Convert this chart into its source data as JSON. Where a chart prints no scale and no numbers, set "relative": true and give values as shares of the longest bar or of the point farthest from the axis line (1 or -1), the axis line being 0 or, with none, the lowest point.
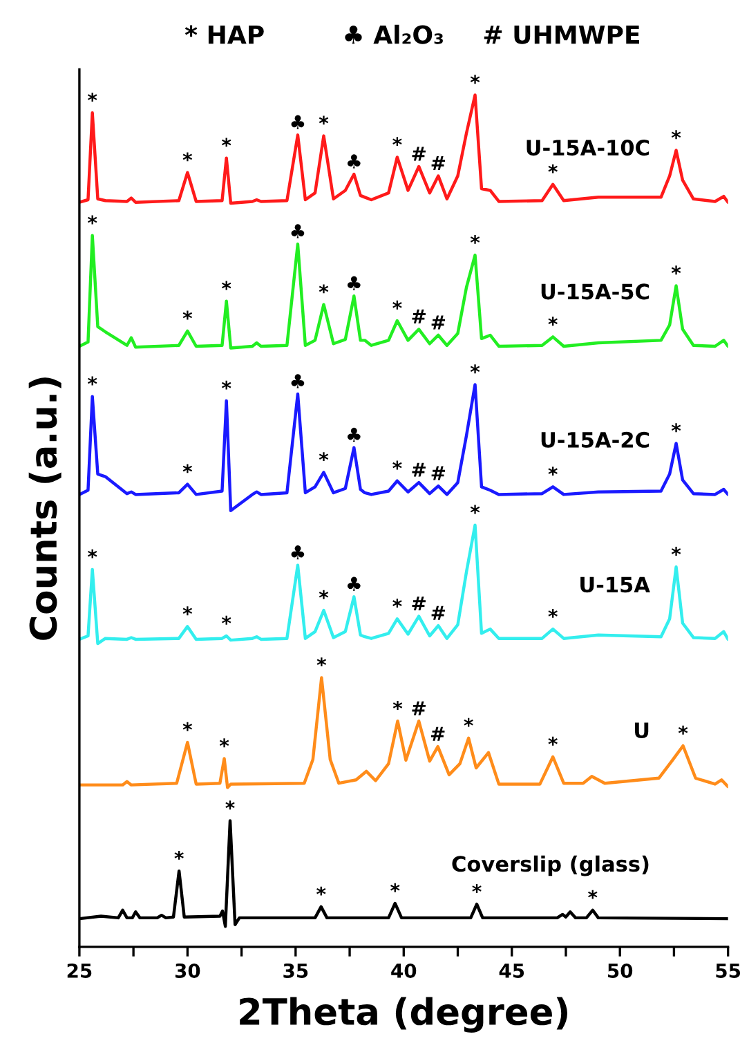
{
  "chart_data": {
    "type": "line",
    "relative": true,
    "xlabel": "2Theta (degree)",
    "ylabel": "Counts (a.u.)",
    "xlim": [
      25,
      55
    ],
    "xticks": [
      25,
      {
        "value": 27.5,
        "label": null
      },
      30,
      {
        "value": 32.5,
        "label": null
      },
      35,
      {
        "value": 37.5,
        "label": null
      },
      40,
      {
        "value": 42.5,
        "label": null
      },
      45,
      {
        "value": 47.5,
        "label": null
      },
      50,
      {
        "value": 52.5,
        "label": null
      },
      55
    ],
    "grid": false,
    "legend": false,
    "tick_labels": "x",
    "series": [
      {
        "name": "U-15A-10C",
        "color": "#ff1a1a",
        "x": [
          25.0,
          25.4,
          25.6,
          25.85,
          26.2,
          27.2,
          27.4,
          27.6,
          29.6,
          30.0,
          30.4,
          31.6,
          31.8,
          32.0,
          33.0,
          33.2,
          33.4,
          34.6,
          35.1,
          35.45,
          35.9,
          36.3,
          36.75,
          37.3,
          37.7,
          38.0,
          38.2,
          38.5,
          39.3,
          39.7,
          40.2,
          40.7,
          41.2,
          41.6,
          42.0,
          42.5,
          42.9,
          43.3,
          43.6,
          44.0,
          44.4,
          46.4,
          46.9,
          47.4,
          49.0,
          51.9,
          52.3,
          52.6,
          52.9,
          53.4,
          54.4,
          54.8,
          55.0
        ],
        "values": [
          0.874,
          0.877,
          0.979,
          0.878,
          0.876,
          0.875,
          0.879,
          0.874,
          0.876,
          0.909,
          0.875,
          0.876,
          0.926,
          0.873,
          0.875,
          0.877,
          0.875,
          0.876,
          0.953,
          0.877,
          0.885,
          0.952,
          0.878,
          0.888,
          0.907,
          0.882,
          0.88,
          0.877,
          0.885,
          0.927,
          0.888,
          0.916,
          0.885,
          0.905,
          0.878,
          0.905,
          0.955,
          1.0,
          0.89,
          0.888,
          0.875,
          0.876,
          0.895,
          0.876,
          0.88,
          0.88,
          0.905,
          0.935,
          0.9,
          0.878,
          0.875,
          0.881,
          0.874
        ]
      },
      {
        "name": "U-15A-5C",
        "color": "#22ee22",
        "x": [
          25.0,
          25.4,
          25.6,
          25.85,
          26.2,
          27.2,
          27.4,
          27.6,
          29.6,
          30.0,
          30.4,
          31.6,
          31.8,
          32.0,
          33.0,
          33.2,
          33.4,
          34.6,
          35.1,
          35.45,
          35.9,
          36.3,
          36.75,
          37.3,
          37.7,
          38.0,
          38.2,
          38.5,
          39.3,
          39.7,
          40.2,
          40.7,
          41.2,
          41.6,
          42.0,
          42.5,
          42.9,
          43.3,
          43.6,
          44.0,
          44.4,
          46.4,
          46.9,
          47.4,
          49.0,
          51.9,
          52.3,
          52.6,
          52.9,
          53.4,
          54.4,
          54.8,
          55.0
        ],
        "values": [
          0.705,
          0.71,
          0.835,
          0.728,
          0.722,
          0.706,
          0.715,
          0.704,
          0.706,
          0.723,
          0.705,
          0.706,
          0.758,
          0.703,
          0.705,
          0.709,
          0.705,
          0.706,
          0.825,
          0.706,
          0.712,
          0.754,
          0.708,
          0.713,
          0.764,
          0.712,
          0.712,
          0.706,
          0.712,
          0.735,
          0.712,
          0.725,
          0.708,
          0.718,
          0.706,
          0.72,
          0.774,
          0.812,
          0.714,
          0.718,
          0.705,
          0.706,
          0.716,
          0.705,
          0.709,
          0.712,
          0.73,
          0.776,
          0.725,
          0.706,
          0.705,
          0.712,
          0.705
        ]
      },
      {
        "name": "U-15A-2C",
        "color": "#1a1aff",
        "x": [
          25.0,
          25.4,
          25.6,
          25.85,
          26.2,
          27.2,
          27.4,
          27.6,
          29.6,
          30.0,
          30.4,
          31.6,
          31.8,
          32.0,
          33.0,
          33.2,
          33.4,
          34.6,
          35.1,
          35.45,
          35.9,
          36.3,
          36.75,
          37.3,
          37.7,
          38.0,
          38.2,
          38.5,
          39.3,
          39.7,
          40.2,
          40.7,
          41.2,
          41.6,
          42.0,
          42.5,
          42.9,
          43.3,
          43.6,
          44.0,
          44.4,
          46.4,
          46.9,
          47.4,
          49.0,
          51.9,
          52.3,
          52.6,
          52.9,
          53.4,
          54.4,
          54.8,
          55.0
        ],
        "values": [
          0.531,
          0.536,
          0.646,
          0.555,
          0.552,
          0.532,
          0.534,
          0.531,
          0.533,
          0.543,
          0.531,
          0.535,
          0.641,
          0.512,
          0.531,
          0.534,
          0.531,
          0.533,
          0.649,
          0.533,
          0.54,
          0.557,
          0.533,
          0.538,
          0.586,
          0.537,
          0.533,
          0.531,
          0.535,
          0.547,
          0.534,
          0.545,
          0.532,
          0.541,
          0.531,
          0.545,
          0.6,
          0.66,
          0.54,
          0.536,
          0.531,
          0.532,
          0.54,
          0.531,
          0.534,
          0.535,
          0.555,
          0.591,
          0.548,
          0.532,
          0.531,
          0.537,
          0.531
        ]
      },
      {
        "name": "U-15A",
        "color": "#33eeee",
        "x": [
          25.0,
          25.4,
          25.6,
          25.85,
          26.2,
          27.2,
          27.4,
          27.6,
          29.6,
          30.0,
          30.4,
          31.6,
          31.8,
          32.0,
          33.0,
          33.2,
          33.4,
          34.6,
          35.1,
          35.45,
          35.9,
          36.3,
          36.75,
          37.3,
          37.7,
          38.0,
          38.2,
          38.5,
          39.3,
          39.7,
          40.2,
          40.7,
          41.2,
          41.6,
          42.0,
          42.5,
          42.9,
          43.3,
          43.6,
          44.0,
          44.4,
          46.4,
          46.9,
          47.4,
          49.0,
          51.9,
          52.3,
          52.6,
          52.9,
          53.4,
          54.4,
          54.8,
          55.0
        ],
        "values": [
          0.361,
          0.365,
          0.443,
          0.356,
          0.362,
          0.361,
          0.363,
          0.361,
          0.362,
          0.376,
          0.361,
          0.362,
          0.365,
          0.36,
          0.362,
          0.364,
          0.361,
          0.362,
          0.448,
          0.362,
          0.37,
          0.395,
          0.363,
          0.37,
          0.411,
          0.366,
          0.364,
          0.362,
          0.368,
          0.385,
          0.367,
          0.388,
          0.365,
          0.377,
          0.362,
          0.378,
          0.44,
          0.495,
          0.368,
          0.373,
          0.362,
          0.362,
          0.373,
          0.362,
          0.366,
          0.364,
          0.385,
          0.446,
          0.38,
          0.363,
          0.362,
          0.37,
          0.361
        ]
      },
      {
        "name": "U",
        "color": "#ff8c1a",
        "x": [
          25.0,
          27.0,
          27.2,
          27.4,
          29.5,
          30.0,
          30.4,
          31.5,
          31.7,
          31.85,
          32.0,
          35.4,
          35.8,
          36.2,
          36.6,
          37.0,
          37.8,
          38.27,
          38.7,
          39.3,
          39.72,
          40.1,
          40.7,
          41.2,
          41.58,
          42.1,
          42.6,
          43.0,
          43.35,
          43.92,
          44.4,
          46.3,
          46.9,
          47.4,
          48.3,
          48.7,
          49.3,
          51.8,
          52.4,
          52.92,
          53.5,
          54.4,
          54.7,
          55.0
        ],
        "values": [
          0.19,
          0.19,
          0.194,
          0.19,
          0.192,
          0.24,
          0.191,
          0.192,
          0.221,
          0.187,
          0.191,
          0.192,
          0.22,
          0.316,
          0.22,
          0.192,
          0.196,
          0.206,
          0.195,
          0.215,
          0.265,
          0.219,
          0.265,
          0.218,
          0.235,
          0.202,
          0.215,
          0.245,
          0.21,
          0.228,
          0.191,
          0.191,
          0.223,
          0.192,
          0.192,
          0.2,
          0.192,
          0.198,
          0.218,
          0.236,
          0.198,
          0.191,
          0.196,
          0.188
        ]
      },
      {
        "name": "Coverslip (glass)",
        "color": "#000000",
        "x": [
          25.0,
          26.0,
          26.8,
          27.0,
          27.2,
          27.45,
          27.6,
          27.8,
          28.6,
          28.8,
          29.0,
          29.35,
          29.61,
          29.85,
          31.5,
          31.62,
          31.75,
          31.97,
          32.2,
          32.4,
          35.9,
          36.18,
          36.45,
          39.3,
          39.6,
          39.9,
          43.1,
          43.38,
          43.65,
          47.1,
          47.35,
          47.5,
          47.7,
          47.95,
          48.45,
          48.74,
          49.0,
          55.0
        ],
        "values": [
          0.033,
          0.036,
          0.034,
          0.043,
          0.034,
          0.034,
          0.041,
          0.034,
          0.034,
          0.037,
          0.034,
          0.035,
          0.089,
          0.035,
          0.036,
          0.042,
          0.024,
          0.148,
          0.026,
          0.034,
          0.034,
          0.047,
          0.034,
          0.034,
          0.051,
          0.034,
          0.034,
          0.05,
          0.034,
          0.034,
          0.038,
          0.035,
          0.041,
          0.034,
          0.034,
          0.043,
          0.034,
          0.033
        ]
      }
    ],
    "annotations": [
      "* HAP",
      "♣ Al₂O₃",
      "# UHMWPE",
      {
        "text": "*",
        "x": 25.6,
        "y": 0.979
      },
      {
        "text": "*",
        "x": 30.0,
        "y": 0.909
      },
      {
        "text": "*",
        "x": 31.8,
        "y": 0.926
      },
      {
        "text": "♣",
        "x": 35.1,
        "y": 0.953
      },
      {
        "text": "*",
        "x": 36.3,
        "y": 0.952
      },
      {
        "text": "♣",
        "x": 37.7,
        "y": 0.907
      },
      {
        "text": "*",
        "x": 39.7,
        "y": 0.927
      },
      {
        "text": "#",
        "x": 40.7,
        "y": 0.916
      },
      {
        "text": "#",
        "x": 41.6,
        "y": 0.905
      },
      {
        "text": "*",
        "x": 43.3,
        "y": 1.0
      },
      {
        "text": "*",
        "x": 46.9,
        "y": 0.895
      },
      {
        "text": "*",
        "x": 52.6,
        "y": 0.935
      },
      {
        "text": "*",
        "x": 25.6,
        "y": 0.835
      },
      {
        "text": "*",
        "x": 30.0,
        "y": 0.723
      },
      {
        "text": "*",
        "x": 31.8,
        "y": 0.758
      },
      {
        "text": "♣",
        "x": 35.1,
        "y": 0.825
      },
      {
        "text": "*",
        "x": 36.3,
        "y": 0.754
      },
      {
        "text": "♣",
        "x": 37.7,
        "y": 0.764
      },
      {
        "text": "*",
        "x": 39.7,
        "y": 0.735
      },
      {
        "text": "#",
        "x": 40.7,
        "y": 0.725
      },
      {
        "text": "#",
        "x": 41.6,
        "y": 0.718
      },
      {
        "text": "*",
        "x": 43.3,
        "y": 0.812
      },
      {
        "text": "*",
        "x": 46.9,
        "y": 0.716
      },
      {
        "text": "*",
        "x": 52.6,
        "y": 0.776
      },
      {
        "text": "*",
        "x": 25.6,
        "y": 0.646
      },
      {
        "text": "*",
        "x": 30.0,
        "y": 0.543
      },
      {
        "text": "*",
        "x": 31.8,
        "y": 0.641
      },
      {
        "text": "♣",
        "x": 35.1,
        "y": 0.649
      },
      {
        "text": "*",
        "x": 36.3,
        "y": 0.557
      },
      {
        "text": "♣",
        "x": 37.7,
        "y": 0.586
      },
      {
        "text": "*",
        "x": 39.7,
        "y": 0.547
      },
      {
        "text": "#",
        "x": 40.7,
        "y": 0.545
      },
      {
        "text": "#",
        "x": 41.6,
        "y": 0.541
      },
      {
        "text": "*",
        "x": 43.3,
        "y": 0.66
      },
      {
        "text": "*",
        "x": 46.9,
        "y": 0.54
      },
      {
        "text": "*",
        "x": 52.6,
        "y": 0.591
      },
      {
        "text": "*",
        "x": 25.6,
        "y": 0.443
      },
      {
        "text": "*",
        "x": 30.0,
        "y": 0.376
      },
      {
        "text": "*",
        "x": 31.8,
        "y": 0.365
      },
      {
        "text": "♣",
        "x": 35.1,
        "y": 0.448
      },
      {
        "text": "*",
        "x": 36.3,
        "y": 0.395
      },
      {
        "text": "♣",
        "x": 37.7,
        "y": 0.411
      },
      {
        "text": "*",
        "x": 39.7,
        "y": 0.385
      },
      {
        "text": "#",
        "x": 40.7,
        "y": 0.388
      },
      {
        "text": "#",
        "x": 41.6,
        "y": 0.377
      },
      {
        "text": "*",
        "x": 43.3,
        "y": 0.495
      },
      {
        "text": "*",
        "x": 46.9,
        "y": 0.373
      },
      {
        "text": "*",
        "x": 52.6,
        "y": 0.446
      },
      {
        "text": "*",
        "x": 30.0,
        "y": 0.24
      },
      {
        "text": "*",
        "x": 31.7,
        "y": 0.221
      },
      {
        "text": "*",
        "x": 36.2,
        "y": 0.316
      },
      {
        "text": "*",
        "x": 39.72,
        "y": 0.265
      },
      {
        "text": "#",
        "x": 40.7,
        "y": 0.265
      },
      {
        "text": "#",
        "x": 41.58,
        "y": 0.235
      },
      {
        "text": "*",
        "x": 43.0,
        "y": 0.245
      },
      {
        "text": "*",
        "x": 46.9,
        "y": 0.223
      },
      {
        "text": "*",
        "x": 52.92,
        "y": 0.236
      },
      {
        "text": "*",
        "x": 29.61,
        "y": 0.089
      },
      {
        "text": "*",
        "x": 31.97,
        "y": 0.148
      },
      {
        "text": "*",
        "x": 36.18,
        "y": 0.047
      },
      {
        "text": "*",
        "x": 39.6,
        "y": 0.051
      },
      {
        "text": "*",
        "x": 43.38,
        "y": 0.05
      },
      {
        "text": "*",
        "x": 48.74,
        "y": 0.043
      }
    ]
  }
}
